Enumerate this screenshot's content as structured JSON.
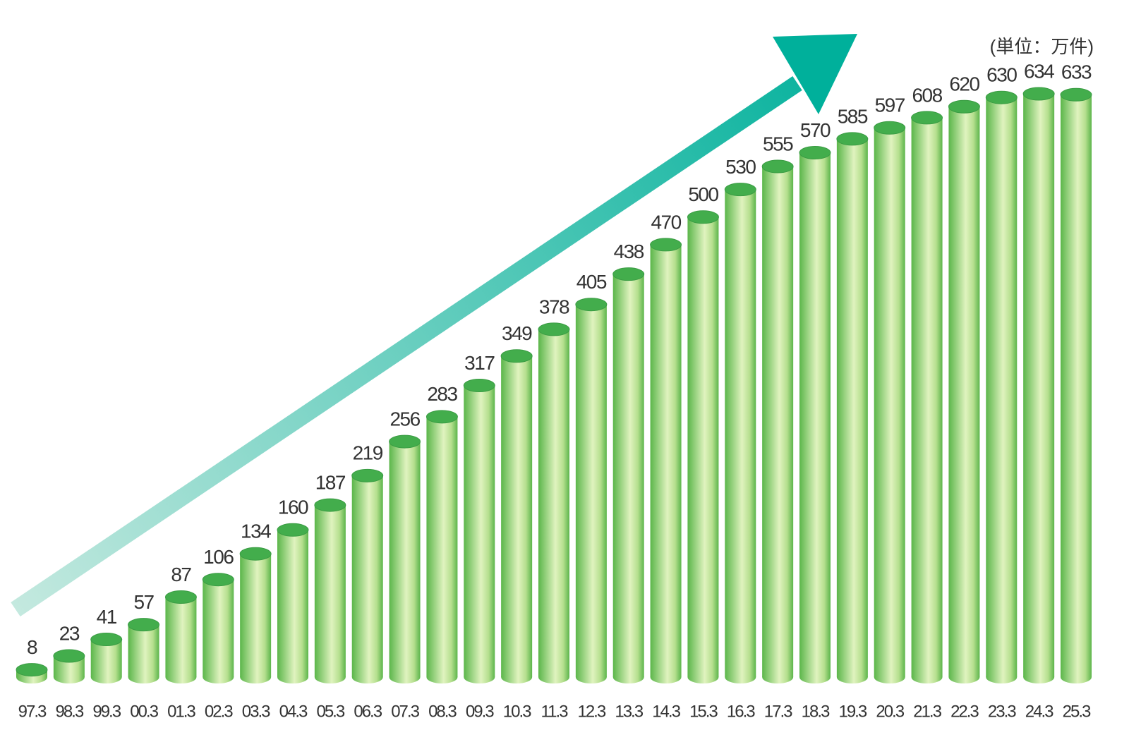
{
  "chart_data": {
    "type": "bar",
    "unit": "(単位：万件)",
    "categories": [
      "97.3",
      "98.3",
      "99.3",
      "00.3",
      "01.3",
      "02.3",
      "03.3",
      "04.3",
      "05.3",
      "06.3",
      "07.3",
      "08.3",
      "09.3",
      "10.3",
      "11.3",
      "12.3",
      "13.3",
      "14.3",
      "15.3",
      "16.3",
      "17.3",
      "18.3",
      "19.3",
      "20.3",
      "21.3",
      "22.3",
      "23.3",
      "24.3",
      "25.3"
    ],
    "values": [
      8,
      23,
      41,
      57,
      87,
      106,
      134,
      160,
      187,
      219,
      256,
      283,
      317,
      349,
      378,
      405,
      438,
      470,
      500,
      530,
      555,
      570,
      585,
      597,
      608,
      620,
      630,
      634,
      633
    ],
    "color": "#43ad4c"
  }
}
